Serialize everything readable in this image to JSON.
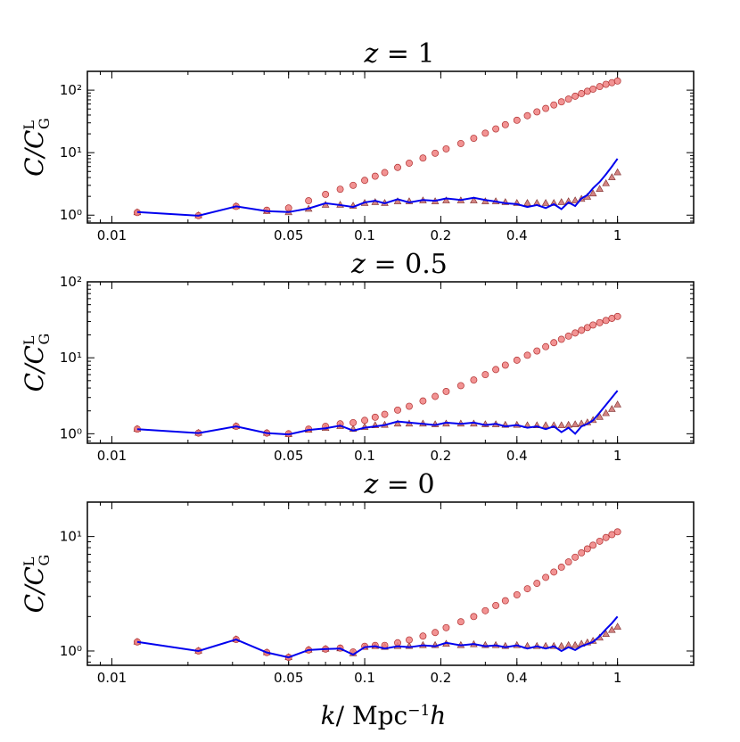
{
  "figure": {
    "xlabel": "k/   Mpc⁻¹h",
    "ylabel": "C/C",
    "ylabel_sup": "L",
    "ylabel_sub": "G"
  },
  "chart_data": [
    {
      "type": "line",
      "title": "z = 1",
      "xscale": "log",
      "yscale": "log",
      "xlim": [
        0.008,
        2.0
      ],
      "ylim": [
        0.75,
        200
      ],
      "xticks": [
        0.01,
        0.05,
        0.1,
        0.2,
        0.4,
        1
      ],
      "xtick_labels": [
        "0.01",
        "0.05",
        "0.1",
        "0.2",
        "0.4",
        "1"
      ],
      "yticks": [
        1,
        10,
        100
      ],
      "ytick_labels": [
        "10⁰",
        "10¹",
        "10²"
      ],
      "series": [
        {
          "name": "blue line",
          "color": "#0000ee",
          "x": [
            0.0126,
            0.022,
            0.031,
            0.041,
            0.05,
            0.06,
            0.07,
            0.08,
            0.09,
            0.1,
            0.11,
            0.12,
            0.135,
            0.15,
            0.17,
            0.19,
            0.21,
            0.24,
            0.27,
            0.3,
            0.33,
            0.36,
            0.4,
            0.44,
            0.48,
            0.52,
            0.56,
            0.6,
            0.64,
            0.68,
            0.72,
            0.76,
            0.8,
            0.85,
            0.9,
            0.95,
            1.0
          ],
          "y": [
            1.12,
            0.98,
            1.38,
            1.16,
            1.12,
            1.28,
            1.55,
            1.45,
            1.35,
            1.6,
            1.7,
            1.55,
            1.8,
            1.6,
            1.75,
            1.7,
            1.85,
            1.75,
            1.9,
            1.75,
            1.65,
            1.55,
            1.5,
            1.35,
            1.45,
            1.3,
            1.5,
            1.25,
            1.6,
            1.4,
            1.85,
            2.1,
            2.7,
            3.4,
            4.5,
            6.0,
            8.0
          ]
        },
        {
          "name": "circles",
          "color": "#f08080",
          "x": [
            0.0126,
            0.022,
            0.031,
            0.041,
            0.05,
            0.06,
            0.07,
            0.08,
            0.09,
            0.1,
            0.11,
            0.12,
            0.135,
            0.15,
            0.17,
            0.19,
            0.21,
            0.24,
            0.27,
            0.3,
            0.33,
            0.36,
            0.4,
            0.44,
            0.48,
            0.52,
            0.56,
            0.6,
            0.64,
            0.68,
            0.72,
            0.76,
            0.8,
            0.85,
            0.9,
            0.95,
            1.0
          ],
          "y": [
            1.1,
            0.98,
            1.38,
            1.2,
            1.3,
            1.7,
            2.15,
            2.6,
            3.0,
            3.6,
            4.2,
            4.8,
            5.8,
            6.8,
            8.2,
            9.8,
            11.5,
            14.0,
            17.0,
            20.5,
            24.0,
            28.0,
            33.0,
            39.0,
            45.0,
            51.0,
            58.0,
            65.0,
            72.0,
            80.0,
            88.0,
            96.0,
            104.0,
            114.0,
            124.0,
            132.0,
            140.0
          ]
        },
        {
          "name": "triangles",
          "color": "#c0504d",
          "x": [
            0.0126,
            0.022,
            0.031,
            0.041,
            0.05,
            0.06,
            0.07,
            0.08,
            0.09,
            0.1,
            0.11,
            0.12,
            0.135,
            0.15,
            0.17,
            0.19,
            0.21,
            0.24,
            0.27,
            0.3,
            0.33,
            0.36,
            0.4,
            0.44,
            0.48,
            0.52,
            0.56,
            0.6,
            0.64,
            0.68,
            0.72,
            0.76,
            0.8,
            0.85,
            0.9,
            0.95,
            1.0
          ],
          "y": [
            1.1,
            0.98,
            1.38,
            1.15,
            1.1,
            1.25,
            1.45,
            1.45,
            1.4,
            1.55,
            1.6,
            1.55,
            1.65,
            1.65,
            1.7,
            1.65,
            1.7,
            1.7,
            1.7,
            1.65,
            1.65,
            1.6,
            1.55,
            1.55,
            1.55,
            1.55,
            1.55,
            1.6,
            1.65,
            1.7,
            1.8,
            1.95,
            2.2,
            2.6,
            3.2,
            4.0,
            4.8
          ]
        }
      ]
    },
    {
      "type": "line",
      "title": "z = 0.5",
      "xscale": "log",
      "yscale": "log",
      "xlim": [
        0.008,
        2.0
      ],
      "ylim": [
        0.75,
        100
      ],
      "xticks": [
        0.01,
        0.05,
        0.1,
        0.2,
        0.4,
        1
      ],
      "xtick_labels": [
        "0.01",
        "0.05",
        "0.1",
        "0.2",
        "0.4",
        "1"
      ],
      "yticks": [
        1,
        10,
        100
      ],
      "ytick_labels": [
        "10⁰",
        "10¹",
        "10²"
      ],
      "series": [
        {
          "name": "blue line",
          "color": "#0000ee",
          "x": [
            0.0126,
            0.022,
            0.031,
            0.041,
            0.05,
            0.06,
            0.07,
            0.08,
            0.09,
            0.1,
            0.11,
            0.12,
            0.135,
            0.15,
            0.17,
            0.19,
            0.21,
            0.24,
            0.27,
            0.3,
            0.33,
            0.36,
            0.4,
            0.44,
            0.48,
            0.52,
            0.56,
            0.6,
            0.64,
            0.68,
            0.72,
            0.76,
            0.8,
            0.85,
            0.9,
            0.95,
            1.0
          ],
          "y": [
            1.15,
            1.02,
            1.25,
            1.02,
            0.98,
            1.12,
            1.18,
            1.28,
            1.1,
            1.2,
            1.25,
            1.3,
            1.45,
            1.4,
            1.35,
            1.3,
            1.4,
            1.35,
            1.4,
            1.3,
            1.35,
            1.25,
            1.3,
            1.2,
            1.25,
            1.15,
            1.25,
            1.05,
            1.2,
            1.0,
            1.25,
            1.35,
            1.5,
            1.9,
            2.4,
            3.0,
            3.7
          ]
        },
        {
          "name": "circles",
          "color": "#f08080",
          "x": [
            0.0126,
            0.022,
            0.031,
            0.041,
            0.05,
            0.06,
            0.07,
            0.08,
            0.09,
            0.1,
            0.11,
            0.12,
            0.135,
            0.15,
            0.17,
            0.19,
            0.21,
            0.24,
            0.27,
            0.3,
            0.33,
            0.36,
            0.4,
            0.44,
            0.48,
            0.52,
            0.56,
            0.6,
            0.64,
            0.68,
            0.72,
            0.76,
            0.8,
            0.85,
            0.9,
            0.95,
            1.0
          ],
          "y": [
            1.15,
            1.02,
            1.25,
            1.02,
            1.0,
            1.15,
            1.25,
            1.35,
            1.4,
            1.5,
            1.65,
            1.8,
            2.05,
            2.3,
            2.7,
            3.1,
            3.6,
            4.3,
            5.1,
            6.0,
            7.0,
            8.0,
            9.3,
            10.8,
            12.3,
            14.0,
            15.8,
            17.5,
            19.3,
            21.2,
            23.0,
            25.0,
            27.0,
            29.0,
            31.0,
            33.0,
            35.0
          ]
        },
        {
          "name": "triangles",
          "color": "#c0504d",
          "x": [
            0.0126,
            0.022,
            0.031,
            0.041,
            0.05,
            0.06,
            0.07,
            0.08,
            0.09,
            0.1,
            0.11,
            0.12,
            0.135,
            0.15,
            0.17,
            0.19,
            0.21,
            0.24,
            0.27,
            0.3,
            0.33,
            0.36,
            0.4,
            0.44,
            0.48,
            0.52,
            0.56,
            0.6,
            0.64,
            0.68,
            0.72,
            0.76,
            0.8,
            0.85,
            0.9,
            0.95,
            1.0
          ],
          "y": [
            1.15,
            1.02,
            1.25,
            1.02,
            0.98,
            1.12,
            1.18,
            1.25,
            1.15,
            1.22,
            1.28,
            1.3,
            1.35,
            1.35,
            1.35,
            1.32,
            1.35,
            1.35,
            1.35,
            1.32,
            1.32,
            1.3,
            1.3,
            1.28,
            1.28,
            1.28,
            1.28,
            1.28,
            1.3,
            1.32,
            1.35,
            1.4,
            1.5,
            1.65,
            1.85,
            2.1,
            2.4
          ]
        }
      ]
    },
    {
      "type": "line",
      "title": "z = 0",
      "xscale": "log",
      "yscale": "log",
      "xlim": [
        0.008,
        2.0
      ],
      "ylim": [
        0.75,
        20
      ],
      "xticks": [
        0.01,
        0.05,
        0.1,
        0.2,
        0.4,
        1
      ],
      "xtick_labels": [
        "0.01",
        "0.05",
        "0.1",
        "0.2",
        "0.4",
        "1"
      ],
      "yticks": [
        1,
        10
      ],
      "ytick_labels": [
        "10⁰",
        "10¹"
      ],
      "series": [
        {
          "name": "blue line",
          "color": "#0000ee",
          "x": [
            0.0126,
            0.022,
            0.031,
            0.041,
            0.05,
            0.06,
            0.07,
            0.08,
            0.09,
            0.1,
            0.11,
            0.12,
            0.135,
            0.15,
            0.17,
            0.19,
            0.21,
            0.24,
            0.27,
            0.3,
            0.33,
            0.36,
            0.4,
            0.44,
            0.48,
            0.52,
            0.56,
            0.6,
            0.64,
            0.68,
            0.72,
            0.76,
            0.8,
            0.85,
            0.9,
            0.95,
            1.0
          ],
          "y": [
            1.2,
            1.0,
            1.26,
            0.97,
            0.88,
            1.02,
            1.04,
            1.05,
            0.93,
            1.08,
            1.1,
            1.05,
            1.1,
            1.08,
            1.12,
            1.1,
            1.18,
            1.12,
            1.15,
            1.1,
            1.12,
            1.08,
            1.12,
            1.05,
            1.1,
            1.05,
            1.1,
            1.0,
            1.08,
            1.02,
            1.1,
            1.15,
            1.2,
            1.35,
            1.55,
            1.75,
            2.0
          ]
        },
        {
          "name": "circles",
          "color": "#f08080",
          "x": [
            0.0126,
            0.022,
            0.031,
            0.041,
            0.05,
            0.06,
            0.07,
            0.08,
            0.09,
            0.1,
            0.11,
            0.12,
            0.135,
            0.15,
            0.17,
            0.19,
            0.21,
            0.24,
            0.27,
            0.3,
            0.33,
            0.36,
            0.4,
            0.44,
            0.48,
            0.52,
            0.56,
            0.6,
            0.64,
            0.68,
            0.72,
            0.76,
            0.8,
            0.85,
            0.9,
            0.95,
            1.0
          ],
          "y": [
            1.2,
            1.0,
            1.26,
            0.97,
            0.88,
            1.02,
            1.04,
            1.06,
            0.98,
            1.1,
            1.12,
            1.12,
            1.18,
            1.25,
            1.35,
            1.45,
            1.6,
            1.8,
            2.0,
            2.25,
            2.5,
            2.75,
            3.1,
            3.5,
            3.9,
            4.4,
            4.9,
            5.4,
            6.0,
            6.6,
            7.2,
            7.8,
            8.4,
            9.1,
            9.8,
            10.4,
            11.0
          ]
        },
        {
          "name": "triangles",
          "color": "#c0504d",
          "x": [
            0.0126,
            0.022,
            0.031,
            0.041,
            0.05,
            0.06,
            0.07,
            0.08,
            0.09,
            0.1,
            0.11,
            0.12,
            0.135,
            0.15,
            0.17,
            0.19,
            0.21,
            0.24,
            0.27,
            0.3,
            0.33,
            0.36,
            0.4,
            0.44,
            0.48,
            0.52,
            0.56,
            0.6,
            0.64,
            0.68,
            0.72,
            0.76,
            0.8,
            0.85,
            0.9,
            0.95,
            1.0
          ],
          "y": [
            1.2,
            1.0,
            1.26,
            0.97,
            0.88,
            1.02,
            1.04,
            1.05,
            0.95,
            1.08,
            1.1,
            1.08,
            1.1,
            1.1,
            1.12,
            1.12,
            1.15,
            1.12,
            1.14,
            1.12,
            1.12,
            1.1,
            1.12,
            1.1,
            1.1,
            1.1,
            1.1,
            1.1,
            1.12,
            1.12,
            1.15,
            1.18,
            1.22,
            1.3,
            1.4,
            1.52,
            1.62
          ]
        }
      ]
    }
  ]
}
